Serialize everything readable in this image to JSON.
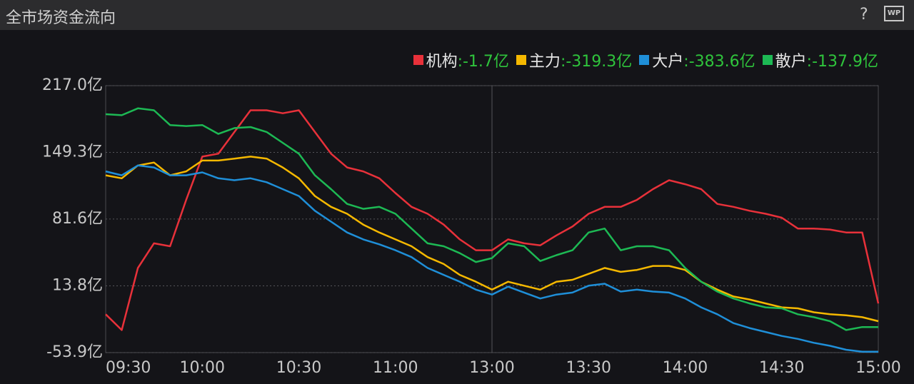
{
  "header": {
    "title": "全市场资金流向",
    "help": "?",
    "icon": "WP"
  },
  "chart_data": {
    "type": "line",
    "categories": [
      "09:30",
      null,
      null,
      null,
      null,
      null,
      "10:00",
      null,
      null,
      null,
      null,
      null,
      "10:30",
      null,
      null,
      null,
      null,
      null,
      "11:00",
      null,
      null,
      null,
      null,
      null,
      "13:00",
      null,
      null,
      null,
      null,
      null,
      "13:30",
      null,
      null,
      null,
      null,
      null,
      "14:00",
      null,
      null,
      null,
      null,
      null,
      "14:30",
      null,
      null,
      null,
      null,
      null,
      "15:00"
    ],
    "series": [
      {
        "name": "机构",
        "color": "#e8313a",
        "legend_value": {
          "value": -1.7,
          "label": ":-1.7亿"
        },
        "values": [
          -15,
          -31,
          32,
          57,
          54,
          101,
          145,
          148,
          170,
          192,
          192,
          189,
          192,
          170,
          148,
          134,
          130,
          123,
          108,
          94,
          87,
          76,
          61,
          50,
          50,
          61,
          57,
          55,
          65,
          74,
          87,
          94,
          94,
          101,
          112,
          121,
          117,
          112,
          97,
          94,
          90,
          87,
          83,
          72,
          72,
          71,
          68,
          68,
          -4
        ]
      },
      {
        "name": "主力",
        "color": "#f5b800",
        "legend_value": {
          "value": -319.3,
          "label": ":-319.3亿"
        },
        "values": [
          126,
          123,
          136,
          139,
          126,
          130,
          141,
          141,
          143,
          145,
          143,
          134,
          123,
          105,
          94,
          87,
          76,
          68,
          61,
          54,
          43,
          36,
          25,
          18,
          10,
          18,
          14,
          10,
          18,
          20,
          26,
          32,
          28,
          30,
          34,
          34,
          30,
          18,
          10,
          3,
          0,
          -4,
          -8,
          -9,
          -13,
          -15,
          -16,
          -18,
          -22
        ]
      },
      {
        "name": "大户",
        "color": "#1f8fd8",
        "legend_value": {
          "value": -383.6,
          "label": ":-383.6亿"
        },
        "values": [
          130,
          126,
          136,
          134,
          126,
          126,
          129,
          123,
          121,
          123,
          119,
          112,
          105,
          90,
          79,
          68,
          61,
          56,
          50,
          43,
          32,
          25,
          18,
          10,
          5,
          13,
          7,
          1,
          5,
          7,
          14,
          16,
          8,
          10,
          8,
          7,
          1,
          -8,
          -15,
          -24,
          -29,
          -33,
          -37,
          -40,
          -44,
          -47,
          -51,
          -53,
          -53
        ]
      },
      {
        "name": "散户",
        "color": "#1db954",
        "legend_value": {
          "value": -137.9,
          "label": ":-137.9亿"
        },
        "values": [
          188,
          187,
          194,
          192,
          177,
          176,
          177,
          168,
          174,
          175,
          170,
          159,
          148,
          126,
          112,
          97,
          92,
          94,
          87,
          72,
          57,
          54,
          47,
          38,
          42,
          57,
          54,
          39,
          45,
          50,
          68,
          72,
          50,
          54,
          54,
          50,
          32,
          18,
          8,
          1,
          -4,
          -8,
          -9,
          -15,
          -18,
          -22,
          -31,
          -28,
          -28
        ]
      }
    ],
    "ylim": [
      -53.9,
      217.0
    ],
    "yticks": [
      {
        "value": 217.0,
        "label": "217.0亿"
      },
      {
        "value": 149.3,
        "label": "149.3亿"
      },
      {
        "value": 81.6,
        "label": "81.6亿"
      },
      {
        "value": 13.8,
        "label": "13.8亿"
      },
      {
        "value": -53.9,
        "label": "-53.9亿"
      }
    ],
    "grid": true
  }
}
